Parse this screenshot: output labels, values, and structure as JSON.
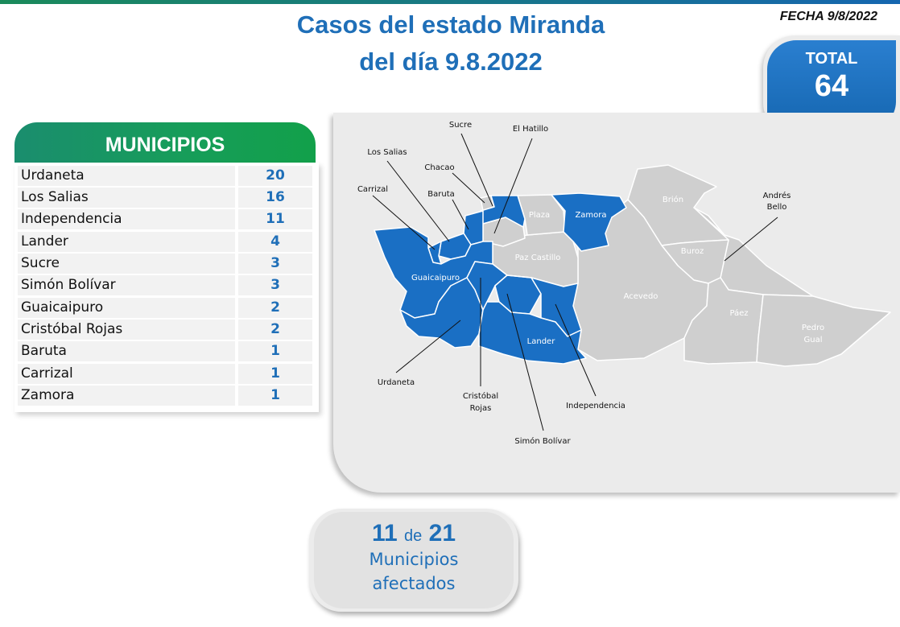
{
  "title": {
    "line1": "Casos del estado Miranda",
    "line2": "del día 9.8.2022"
  },
  "fecha": "FECHA 9/8/2022",
  "total": {
    "label": "TOTAL",
    "value": "64"
  },
  "municipios": {
    "header": "MUNICIPIOS",
    "rows": [
      {
        "name": "Urdaneta",
        "count": "20"
      },
      {
        "name": "Los Salias",
        "count": "16"
      },
      {
        "name": "Independencia",
        "count": "11"
      },
      {
        "name": "Lander",
        "count": "4"
      },
      {
        "name": "Sucre",
        "count": "3"
      },
      {
        "name": "Simón Bolívar",
        "count": "3"
      },
      {
        "name": "Guaicaipuro",
        "count": "2"
      },
      {
        "name": "Cristóbal Rojas",
        "count": "2"
      },
      {
        "name": "Baruta",
        "count": "1"
      },
      {
        "name": "Carrizal",
        "count": "1"
      },
      {
        "name": "Zamora",
        "count": "1"
      }
    ]
  },
  "map": {
    "colors": {
      "affected": "#1a6fc4",
      "unaffected": "#cfcfcf",
      "border": "#ffffff"
    },
    "inner_labels": {
      "plaza": "Plaza",
      "zamora": "Zamora",
      "brion": "Brión",
      "paz_castillo": "Paz Castillo",
      "guaicaipuro": "Guaicaipuro",
      "buroz": "Buroz",
      "acevedo": "Acevedo",
      "paez": "Páez",
      "pedro_gual_1": "Pedro",
      "pedro_gual_2": "Gual",
      "lander": "Lander"
    },
    "callouts": {
      "sucre": "Sucre",
      "el_hatillo": "El Hatillo",
      "los_salias": "Los Salias",
      "chacao": "Chacao",
      "carrizal": "Carrizal",
      "baruta": "Baruta",
      "andres_bello_1": "Andrés",
      "andres_bello_2": "Bello",
      "urdaneta": "Urdaneta",
      "cristobal_rojas_1": "Cristóbal",
      "cristobal_rojas_2": "Rojas",
      "independencia": "Independencia",
      "simon_bolivar": "Simón Bolívar"
    }
  },
  "afectados": {
    "count": "11",
    "de": "de",
    "total": "21",
    "line2": "Municipios",
    "line3": "afectados"
  }
}
